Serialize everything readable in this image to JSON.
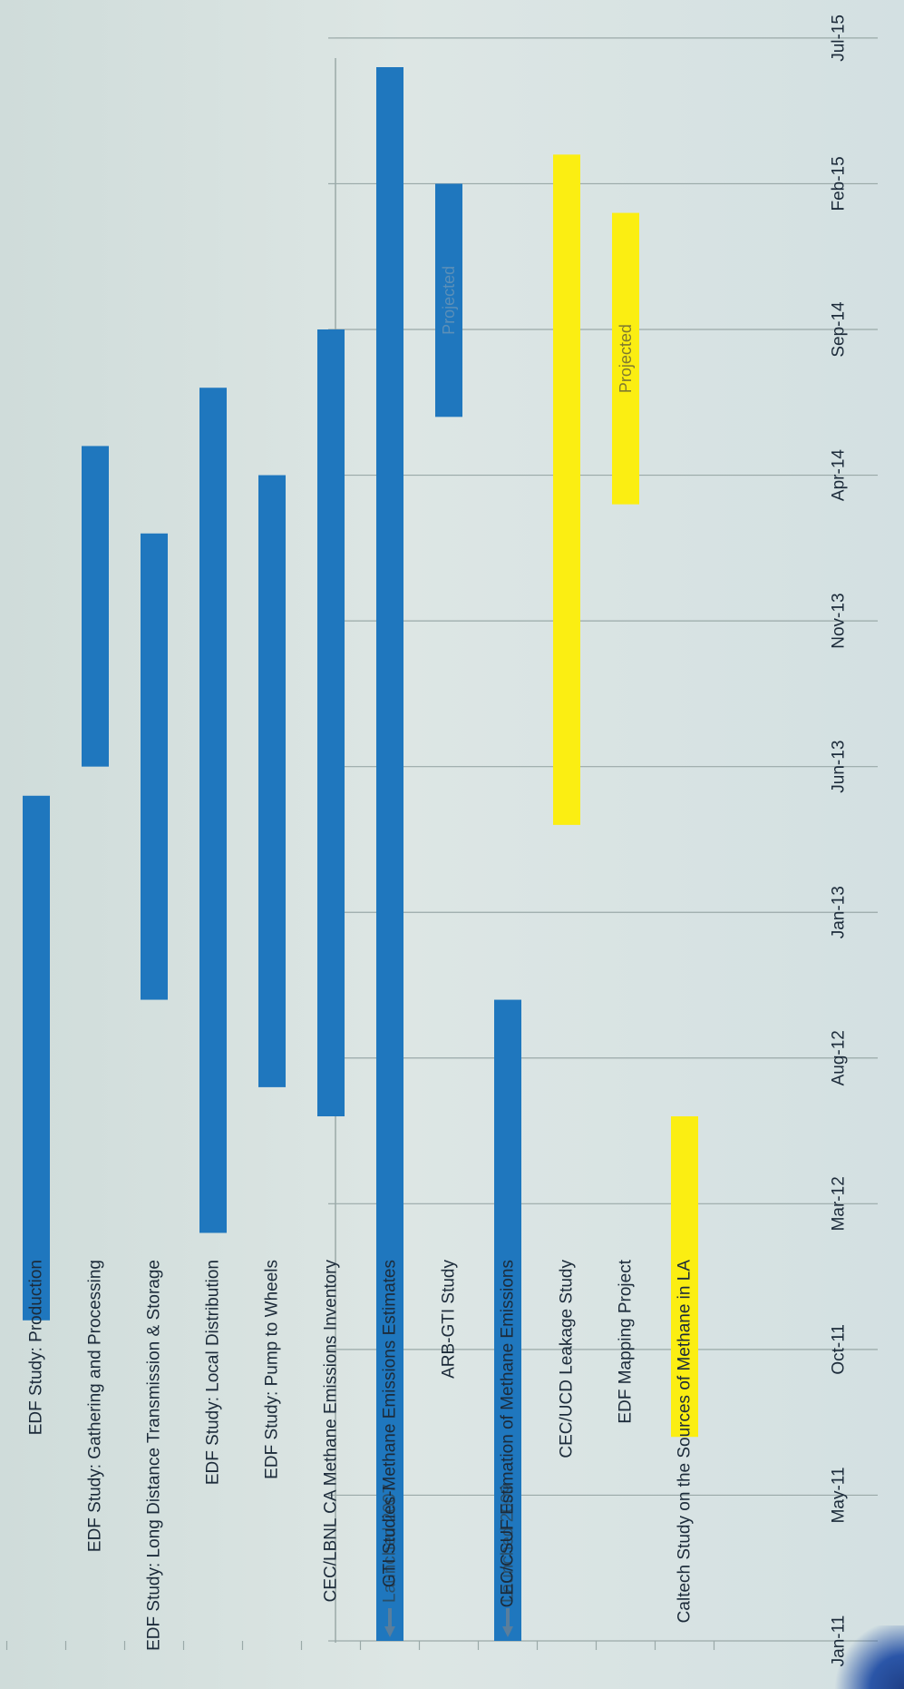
{
  "chart_data": {
    "type": "gantt",
    "orientation": "rotated-90",
    "time_ticks": [
      "Jan-11",
      "May-11",
      "Oct-11",
      "Mar-12",
      "Aug-12",
      "Jan-13",
      "Jun-13",
      "Nov-13",
      "Apr-14",
      "Sep-14",
      "Feb-15",
      "Jul-15"
    ],
    "time_range": [
      "2011-01",
      "2015-07"
    ],
    "grid": true,
    "colors": {
      "blue": "#1f77be",
      "yellow": "#fbee12",
      "grid": "#9aa9a8",
      "axis_text": "#1c2b3a",
      "bar_text": "#2a4f6a"
    },
    "tasks": [
      {
        "label": "EDF Study: Production",
        "start": "2011-12",
        "end": "2013-06",
        "color": "blue"
      },
      {
        "label": "EDF Study: Gathering and Processing",
        "start": "2013-07",
        "end": "2014-06",
        "color": "blue"
      },
      {
        "label": "EDF Study: Long Distance Transmission & Storage",
        "start": "2012-11",
        "end": "2014-03",
        "color": "blue"
      },
      {
        "label": "EDF Study: Local Distribution",
        "start": "2012-03",
        "end": "2014-08",
        "color": "blue"
      },
      {
        "label": "EDF Study: Pump to Wheels",
        "start": "2012-08",
        "end": "2014-05",
        "color": "blue"
      },
      {
        "label": "CEC/LBNL CA Methane Emissions Inventory",
        "start": "2012-07",
        "end": "2014-10",
        "color": "blue"
      },
      {
        "label": "GTI Studies-Methane Emissions Estimates",
        "start": "2011-01",
        "end": "2015-07",
        "color": "blue",
        "start_note": "Launched 2007"
      },
      {
        "label": "ARB-GTI Study",
        "start": "2014-07",
        "end": "2015-03",
        "color": "blue",
        "bar_text": "Projected"
      },
      {
        "label": "CEC/CSUF Estimation of Methane Emissions",
        "start": "2011-01",
        "end": "2012-11",
        "color": "blue",
        "start_note": "Launched 2009"
      },
      {
        "label": "CEC/UCD Leakage Study",
        "start": "2013-05",
        "end": "2015-04",
        "color": "yellow"
      },
      {
        "label": "EDF Mapping Project",
        "start": "2014-04",
        "end": "2015-02",
        "color": "yellow",
        "bar_text": "Projected"
      },
      {
        "label": "Caltech Study on the Sources of Methane in LA",
        "start": "2011-08",
        "end": "2012-07",
        "color": "yellow"
      }
    ]
  }
}
